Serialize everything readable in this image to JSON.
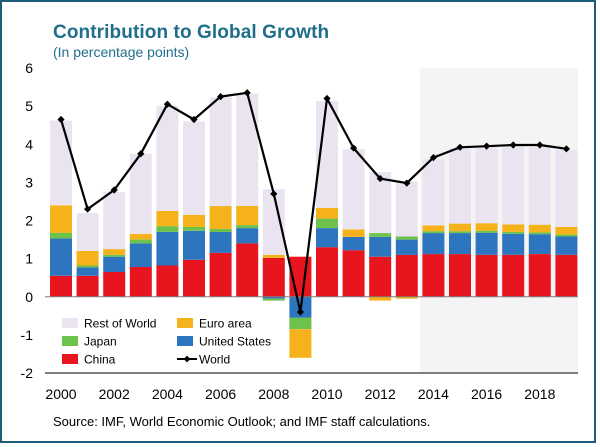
{
  "title": "Contribution to Global Growth",
  "subtitle": "(In percentage points)",
  "source": "Source: IMF, World Economic Outlook; and IMF staff calculations.",
  "chart_data": {
    "type": "bar",
    "stacked": true,
    "x": [
      2000,
      2001,
      2002,
      2003,
      2004,
      2005,
      2006,
      2007,
      2008,
      2009,
      2010,
      2011,
      2012,
      2013,
      2014,
      2015,
      2016,
      2017,
      2018,
      2019
    ],
    "x_tick_labels": [
      "2000",
      "2002",
      "2004",
      "2006",
      "2008",
      "2010",
      "2012",
      "2014",
      "2016",
      "2018"
    ],
    "ylim": [
      -2,
      6
    ],
    "y_tick_labels": [
      "6",
      "5",
      "4",
      "3",
      "2",
      "1",
      "0",
      "-1",
      "-2"
    ],
    "projection_from": 2014,
    "series": [
      {
        "name": "China",
        "color": "#e8141e",
        "values": [
          0.55,
          0.55,
          0.65,
          0.78,
          0.82,
          0.97,
          1.15,
          1.4,
          1.02,
          1.05,
          1.3,
          1.22,
          1.05,
          1.1,
          1.12,
          1.12,
          1.1,
          1.1,
          1.12,
          1.1
        ]
      },
      {
        "name": "United States",
        "color": "#2e75c0",
        "values": [
          0.98,
          0.22,
          0.4,
          0.62,
          0.88,
          0.76,
          0.55,
          0.4,
          -0.05,
          -0.55,
          0.5,
          0.35,
          0.52,
          0.4,
          0.55,
          0.55,
          0.58,
          0.55,
          0.52,
          0.48
        ]
      },
      {
        "name": "Japan",
        "color": "#6cc24a",
        "values": [
          0.15,
          0.05,
          0.05,
          0.1,
          0.15,
          0.1,
          0.08,
          0.08,
          -0.05,
          -0.3,
          0.25,
          0.0,
          0.1,
          0.08,
          0.05,
          0.05,
          0.05,
          0.05,
          0.05,
          0.05
        ]
      },
      {
        "name": "Euro area",
        "color": "#f6b21b",
        "values": [
          0.72,
          0.38,
          0.15,
          0.15,
          0.4,
          0.32,
          0.6,
          0.5,
          0.08,
          -0.75,
          0.28,
          0.2,
          -0.1,
          -0.05,
          0.15,
          0.2,
          0.2,
          0.2,
          0.2,
          0.2
        ]
      },
      {
        "name": "Rest of World",
        "color": "#e9e4f0",
        "values": [
          2.22,
          1.0,
          1.5,
          2.1,
          2.75,
          2.45,
          2.85,
          2.95,
          1.72,
          0.0,
          2.8,
          2.1,
          1.6,
          1.45,
          1.73,
          1.98,
          2.02,
          2.1,
          2.05,
          2.02
        ]
      },
      {
        "name": "World",
        "type": "line",
        "color": "#000000",
        "values": [
          4.65,
          2.3,
          2.8,
          3.75,
          5.05,
          4.65,
          5.25,
          5.35,
          2.7,
          -0.4,
          5.2,
          3.9,
          3.1,
          2.98,
          3.65,
          3.92,
          3.95,
          3.98,
          3.98,
          3.88
        ]
      }
    ],
    "legend": {
      "placement": "lower-left",
      "rows": [
        [
          "Rest of World",
          "Euro area"
        ],
        [
          "Japan",
          "United States"
        ],
        [
          "China",
          "World"
        ]
      ]
    }
  }
}
